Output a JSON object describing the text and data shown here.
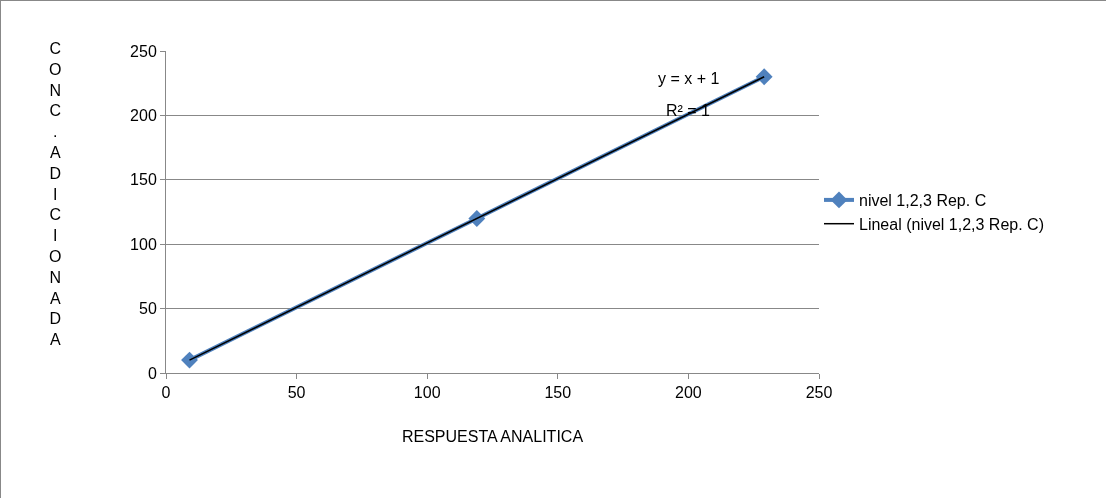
{
  "chart_data": {
    "type": "line",
    "xlabel": "RESPUESTA ANALITICA",
    "ylabel": "CONC.ADICIONADA",
    "series": [
      {
        "name": "nivel 1,2,3 Rep. C",
        "color": "#4f81bd",
        "marker": "diamond",
        "x": [
          9,
          119,
          229
        ],
        "values": [
          10,
          120,
          230
        ]
      },
      {
        "name": "Lineal (nivel 1,2,3 Rep. C)",
        "color": "#000000",
        "marker": "none",
        "x": [
          9,
          229
        ],
        "values": [
          10,
          230
        ]
      }
    ],
    "annotations": [
      "y = x + 1",
      "R² = 1"
    ],
    "xlim": [
      0,
      250
    ],
    "xticks": [
      0,
      50,
      100,
      150,
      200,
      250
    ],
    "ylim": [
      0,
      250
    ],
    "yticks": [
      0,
      50,
      100,
      150,
      200,
      250
    ],
    "grid": "y",
    "legend": "right"
  }
}
